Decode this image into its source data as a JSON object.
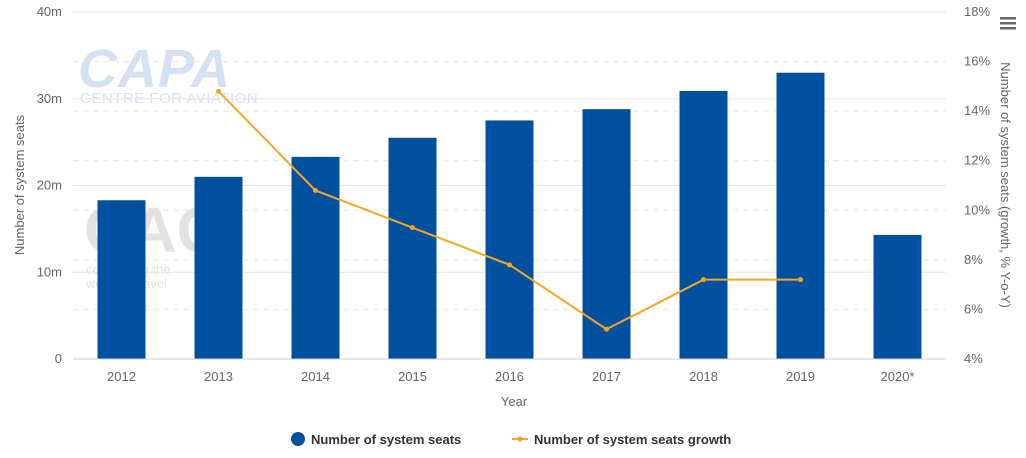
{
  "chart_data": {
    "type": "bar",
    "title": "",
    "categories": [
      "2012",
      "2013",
      "2014",
      "2015",
      "2016",
      "2017",
      "2018",
      "2019",
      "2020*"
    ],
    "xlabel": "Year",
    "ylabel": "Number of system seats",
    "ylabel_right": "Number of system seats (growth, % Y-o-Y)",
    "ylim": [
      0,
      40
    ],
    "ylim_right": [
      4,
      18
    ],
    "y_ticks": [
      "0",
      "10m",
      "20m",
      "30m",
      "40m"
    ],
    "y_ticks_right": [
      "4%",
      "6%",
      "8%",
      "10%",
      "12%",
      "14%",
      "16%",
      "18%"
    ],
    "y_tick_values": [
      0,
      10,
      20,
      30,
      40
    ],
    "y_tick_values_right": [
      4,
      6,
      8,
      10,
      12,
      14,
      16,
      18
    ],
    "grid": true,
    "legend_position": "bottom-center",
    "series": [
      {
        "name": "Number of system seats",
        "type": "bar",
        "axis": "left",
        "color": "#0050a0",
        "values": [
          18.3,
          21.0,
          23.3,
          25.5,
          27.5,
          28.8,
          30.9,
          33.0,
          14.3
        ]
      },
      {
        "name": "Number of system seats growth",
        "type": "line",
        "axis": "right",
        "color": "#f5a623",
        "values": [
          null,
          14.8,
          10.8,
          9.3,
          7.8,
          5.2,
          7.2,
          7.2,
          null
        ]
      }
    ]
  },
  "watermarks": {
    "capa_logo": "CAPA",
    "capa_subtitle": "CENTRE FOR AVIATION",
    "cag_logo": "CAG",
    "cag_tagline_1": "connecting the",
    "cag_tagline_2": "world of travel"
  },
  "menu": {
    "icon": "hamburger-menu-icon"
  }
}
